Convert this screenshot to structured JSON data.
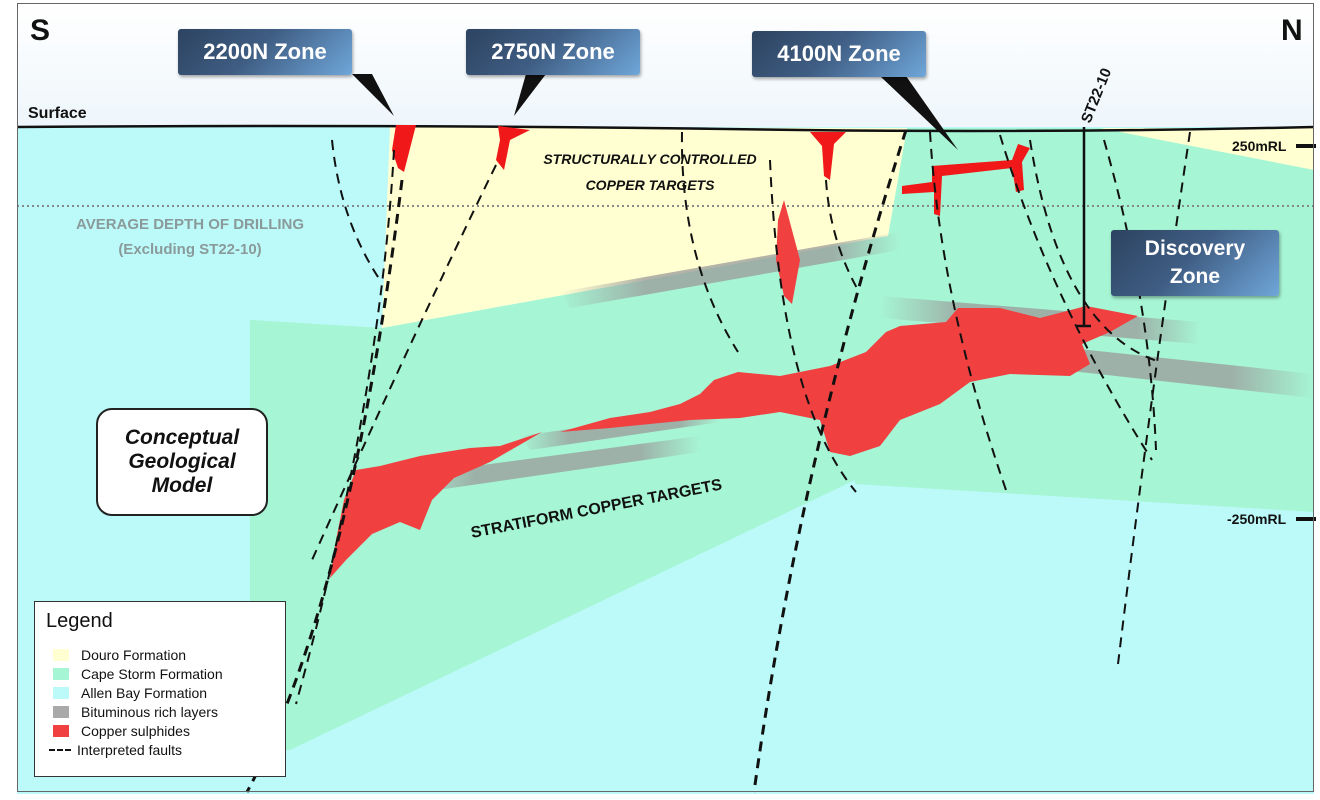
{
  "compass": {
    "south": "S",
    "north": "N"
  },
  "zones": [
    {
      "label": "2200N Zone"
    },
    {
      "label": "2750N Zone"
    },
    {
      "label": "4100N Zone"
    }
  ],
  "discovery_zone": {
    "line1": "Discovery",
    "line2": "Zone"
  },
  "labels": {
    "surface": "Surface",
    "drillhole": "ST22-10",
    "rl_top": "250mRL",
    "rl_bottom": "-250mRL",
    "avg_depth_line1": "AVERAGE DEPTH OF DRILLING",
    "avg_depth_line2": "(Excluding ST22-10)",
    "structural_line1": "STRUCTURALLY CONTROLLED",
    "structural_line2": "COPPER TARGETS",
    "stratiform": "STRATIFORM COPPER TARGETS"
  },
  "concept": {
    "line1": "Conceptual",
    "line2": "Geological",
    "line3": "Model"
  },
  "legend": {
    "title": "Legend",
    "items": [
      {
        "label": "Douro Formation",
        "color": "#ffffd2"
      },
      {
        "label": "Cape Storm Formation",
        "color": "#a6f5d4"
      },
      {
        "label": "Allen Bay Formation",
        "color": "#bcfafa"
      },
      {
        "label": "Bituminous rich layers",
        "color": "#a9a9a9"
      },
      {
        "label": "Copper sulphides",
        "color": "#f04040"
      },
      {
        "label": "Interpreted faults",
        "icon": "dashed-line-icon"
      }
    ]
  },
  "colors": {
    "douro": "#ffffd2",
    "cape_storm": "#a6f5d4",
    "allen_bay": "#bcfafa",
    "bituminous": "#a9a9a9",
    "copper": "#f04040",
    "sky": "#ffffff"
  }
}
